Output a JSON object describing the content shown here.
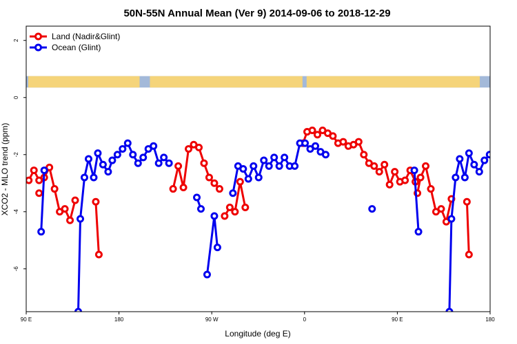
{
  "chart_data": {
    "type": "line",
    "title": "50N-55N Annual Mean (Ver 9)   2014-09-06 to 2018-12-29",
    "xlabel": "Longitude (deg E)",
    "ylabel": "XCO2 - MLO trend (ppm)",
    "xlim": [
      90,
      540
    ],
    "ylim": [
      -7.5,
      2.5
    ],
    "x_ticks": [
      {
        "value": 90,
        "label": "90 E"
      },
      {
        "value": 180,
        "label": "180"
      },
      {
        "value": 270,
        "label": "90 W"
      },
      {
        "value": 360,
        "label": "0"
      },
      {
        "value": 450,
        "label": "90 E"
      },
      {
        "value": 540,
        "label": "180"
      }
    ],
    "y_ticks": [
      {
        "value": 2,
        "label": "2"
      },
      {
        "value": 0,
        "label": "0"
      },
      {
        "value": -2,
        "label": "-2"
      },
      {
        "value": -4,
        "label": "-4"
      },
      {
        "value": -6,
        "label": "-6"
      }
    ],
    "land_ocean_strip": {
      "y_top": 0.75,
      "y_bottom": 0.35,
      "land_color": "#f5d47a",
      "ocean_color": "#a3b9d9"
    },
    "series": [
      {
        "name": "Land (Nadir&Glint)",
        "color": "#ee0000",
        "segments": [
          [
            [
              92.5,
              -2.9
            ],
            [
              97.5,
              -2.55
            ],
            [
              102.5,
              -2.9
            ],
            [
              107.5,
              -2.8
            ],
            [
              112.5,
              -2.45
            ],
            [
              117.5,
              -3.2
            ],
            [
              122.5,
              -4.0
            ],
            [
              127.5,
              -3.9
            ],
            [
              132.5,
              -4.3
            ],
            [
              137.5,
              -3.6
            ]
          ],
          [
            [
              102.5,
              -3.35
            ]
          ],
          [
            [
              157.5,
              -3.65
            ],
            [
              160.5,
              -5.5
            ]
          ],
          [
            [
              232.5,
              -3.2
            ],
            [
              237.5,
              -2.4
            ],
            [
              242.5,
              -3.15
            ],
            [
              247.5,
              -1.8
            ],
            [
              252.5,
              -1.65
            ],
            [
              257.5,
              -1.75
            ],
            [
              262.5,
              -2.3
            ],
            [
              267.5,
              -2.8
            ],
            [
              272.5,
              -3.0
            ],
            [
              277.5,
              -3.2
            ]
          ],
          [
            [
              282.5,
              -4.15
            ],
            [
              287.5,
              -3.85
            ],
            [
              292.5,
              -4.0
            ],
            [
              297.5,
              -2.95
            ],
            [
              302.5,
              -3.85
            ]
          ],
          [
            [
              358.5,
              -1.6
            ],
            [
              362.5,
              -1.2
            ],
            [
              367.5,
              -1.15
            ],
            [
              372.5,
              -1.3
            ],
            [
              377.5,
              -1.15
            ],
            [
              382.5,
              -1.25
            ],
            [
              387.5,
              -1.35
            ],
            [
              392.5,
              -1.6
            ],
            [
              397.5,
              -1.55
            ],
            [
              402.5,
              -1.7
            ],
            [
              407.5,
              -1.65
            ],
            [
              412.5,
              -1.55
            ],
            [
              417.5,
              -2.0
            ],
            [
              422.5,
              -2.3
            ],
            [
              427.5,
              -2.4
            ],
            [
              432.5,
              -2.6
            ],
            [
              437.5,
              -2.35
            ],
            [
              442.5,
              -3.05
            ],
            [
              447.5,
              -2.6
            ],
            [
              452.5,
              -2.95
            ],
            [
              457.5,
              -2.9
            ],
            [
              462.5,
              -2.55
            ],
            [
              467.5,
              -2.95
            ]
          ],
          [
            [
              469.5,
              -3.35
            ],
            [
              472.5,
              -2.8
            ],
            [
              477.5,
              -2.4
            ],
            [
              482.5,
              -3.2
            ],
            [
              487.5,
              -4.0
            ],
            [
              492.5,
              -3.9
            ],
            [
              497.5,
              -4.35
            ],
            [
              502.5,
              -3.55
            ]
          ],
          [
            [
              517.5,
              -3.65
            ],
            [
              519.5,
              -5.5
            ]
          ]
        ]
      },
      {
        "name": "Ocean (Glint)",
        "color": "#0000ee",
        "segments": [
          [
            [
              104.5,
              -4.7
            ],
            [
              107.5,
              -2.55
            ]
          ],
          [
            [
              140.5,
              -7.5
            ],
            [
              142.5,
              -4.25
            ],
            [
              146.5,
              -2.8
            ],
            [
              150.5,
              -2.15
            ],
            [
              155.5,
              -2.8
            ],
            [
              159.5,
              -1.95
            ],
            [
              164.5,
              -2.35
            ],
            [
              169.5,
              -2.6
            ],
            [
              173.5,
              -2.2
            ],
            [
              178.5,
              -2.0
            ],
            [
              183.5,
              -1.8
            ],
            [
              188.5,
              -1.6
            ],
            [
              193.5,
              -2.0
            ],
            [
              198.5,
              -2.3
            ],
            [
              203.5,
              -2.1
            ],
            [
              208.5,
              -1.8
            ],
            [
              213.5,
              -1.7
            ],
            [
              218.5,
              -2.3
            ],
            [
              223.5,
              -2.1
            ],
            [
              228.5,
              -2.3
            ]
          ],
          [
            [
              255.5,
              -3.5
            ],
            [
              259.5,
              -3.9
            ]
          ],
          [
            [
              265.5,
              -6.2
            ],
            [
              272.5,
              -4.15
            ],
            [
              275.5,
              -5.25
            ]
          ],
          [
            [
              290.5,
              -3.35
            ],
            [
              295.5,
              -2.4
            ],
            [
              300.5,
              -2.5
            ],
            [
              305.5,
              -2.85
            ],
            [
              310.5,
              -2.4
            ],
            [
              315.5,
              -2.8
            ],
            [
              320.5,
              -2.2
            ],
            [
              325.5,
              -2.4
            ],
            [
              330.5,
              -2.1
            ],
            [
              335.5,
              -2.4
            ],
            [
              340.5,
              -2.1
            ],
            [
              345.5,
              -2.4
            ],
            [
              350.5,
              -2.4
            ],
            [
              355.5,
              -1.6
            ],
            [
              360.5,
              -1.6
            ],
            [
              365.5,
              -1.8
            ],
            [
              370.5,
              -1.7
            ],
            [
              375.5,
              -1.9
            ],
            [
              380.5,
              -2.0
            ]
          ],
          [
            [
              425.5,
              -3.9
            ]
          ],
          [
            [
              466.5,
              -2.55
            ],
            [
              470.5,
              -4.7
            ]
          ],
          [
            [
              500.5,
              -7.5
            ],
            [
              502.5,
              -4.25
            ],
            [
              506.5,
              -2.8
            ],
            [
              510.5,
              -2.15
            ],
            [
              515.5,
              -2.8
            ],
            [
              519.5,
              -1.95
            ],
            [
              524.5,
              -2.35
            ],
            [
              529.5,
              -2.6
            ],
            [
              534.5,
              -2.2
            ],
            [
              539.5,
              -2.0
            ]
          ]
        ]
      }
    ]
  }
}
